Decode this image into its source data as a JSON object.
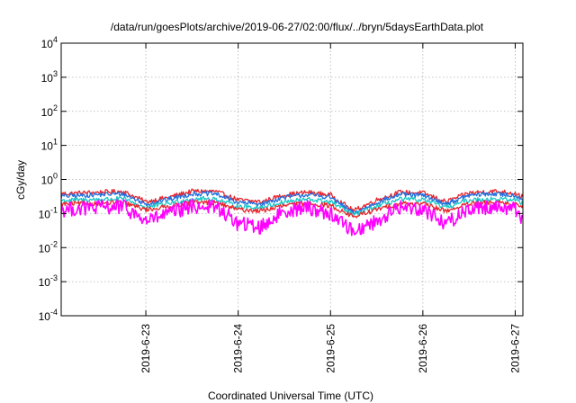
{
  "chart_data": {
    "type": "line",
    "title": "/data/run/goesPlots/archive/2019-06-27/02:00/flux/../bryn/5daysEarthData.plot",
    "xlabel": "Coordinated Universal Time (UTC)",
    "ylabel": "cGy/day",
    "yscale": "log",
    "ylim": [
      0.0001,
      10000
    ],
    "xlim": [
      "2019-06-22T02:00",
      "2019-06-27T02:00"
    ],
    "y_ticks": [
      {
        "value": 0.0001,
        "base": "10",
        "exp": "-4"
      },
      {
        "value": 0.001,
        "base": "10",
        "exp": "-3"
      },
      {
        "value": 0.01,
        "base": "10",
        "exp": "-2"
      },
      {
        "value": 0.1,
        "base": "10",
        "exp": "-1"
      },
      {
        "value": 1,
        "base": "10",
        "exp": "0"
      },
      {
        "value": 10,
        "base": "10",
        "exp": "1"
      },
      {
        "value": 100,
        "base": "10",
        "exp": "2"
      },
      {
        "value": 1000,
        "base": "10",
        "exp": "3"
      },
      {
        "value": 10000,
        "base": "10",
        "exp": "4"
      }
    ],
    "x_ticks": [
      "2019-6-23",
      "2019-6-24",
      "2019-6-25",
      "2019-6-26",
      "2019-6-27"
    ],
    "x_tick_dates": [
      "2019-06-23T00:00",
      "2019-06-24T00:00",
      "2019-06-25T00:00",
      "2019-06-26T00:00",
      "2019-06-27T00:00"
    ],
    "grid": true,
    "legend": "none",
    "series": [
      {
        "color": "#e8232a",
        "x": [
          "2019-06-22T02:00",
          "2019-06-22T12:00",
          "2019-06-22T18:00",
          "2019-06-23T00:00",
          "2019-06-23T06:00",
          "2019-06-23T12:00",
          "2019-06-23T18:00",
          "2019-06-24T00:00",
          "2019-06-24T06:00",
          "2019-06-24T12:00",
          "2019-06-24T18:00",
          "2019-06-25T00:00",
          "2019-06-25T06:00",
          "2019-06-25T12:00",
          "2019-06-25T18:00",
          "2019-06-26T00:00",
          "2019-06-26T06:00",
          "2019-06-26T12:00",
          "2019-06-26T18:00",
          "2019-06-27T00:00",
          "2019-06-27T02:00"
        ],
        "values": [
          0.38,
          0.42,
          0.45,
          0.22,
          0.3,
          0.45,
          0.45,
          0.25,
          0.22,
          0.35,
          0.42,
          0.35,
          0.12,
          0.25,
          0.42,
          0.4,
          0.22,
          0.4,
          0.45,
          0.4,
          0.3
        ]
      },
      {
        "color": "#1f6fe0",
        "x": [
          "2019-06-22T02:00",
          "2019-06-22T12:00",
          "2019-06-22T18:00",
          "2019-06-23T00:00",
          "2019-06-23T06:00",
          "2019-06-23T12:00",
          "2019-06-23T18:00",
          "2019-06-24T00:00",
          "2019-06-24T06:00",
          "2019-06-24T12:00",
          "2019-06-24T18:00",
          "2019-06-25T00:00",
          "2019-06-25T06:00",
          "2019-06-25T12:00",
          "2019-06-25T18:00",
          "2019-06-26T00:00",
          "2019-06-26T06:00",
          "2019-06-26T12:00",
          "2019-06-26T18:00",
          "2019-06-27T00:00",
          "2019-06-27T02:00"
        ],
        "values": [
          0.32,
          0.36,
          0.38,
          0.19,
          0.26,
          0.38,
          0.38,
          0.21,
          0.19,
          0.3,
          0.36,
          0.3,
          0.1,
          0.21,
          0.36,
          0.34,
          0.19,
          0.34,
          0.38,
          0.34,
          0.26
        ]
      },
      {
        "color": "#18c6c6",
        "x": [
          "2019-06-22T02:00",
          "2019-06-22T12:00",
          "2019-06-22T18:00",
          "2019-06-23T00:00",
          "2019-06-23T06:00",
          "2019-06-23T12:00",
          "2019-06-23T18:00",
          "2019-06-24T00:00",
          "2019-06-24T06:00",
          "2019-06-24T12:00",
          "2019-06-24T18:00",
          "2019-06-25T00:00",
          "2019-06-25T06:00",
          "2019-06-25T12:00",
          "2019-06-25T18:00",
          "2019-06-26T00:00",
          "2019-06-26T06:00",
          "2019-06-26T12:00",
          "2019-06-26T18:00",
          "2019-06-27T00:00",
          "2019-06-27T02:00"
        ],
        "values": [
          0.24,
          0.26,
          0.27,
          0.15,
          0.2,
          0.27,
          0.27,
          0.16,
          0.15,
          0.22,
          0.26,
          0.22,
          0.09,
          0.16,
          0.26,
          0.25,
          0.15,
          0.25,
          0.27,
          0.25,
          0.2
        ]
      },
      {
        "color": "#e8232a",
        "x": [
          "2019-06-22T02:00",
          "2019-06-22T12:00",
          "2019-06-22T18:00",
          "2019-06-23T00:00",
          "2019-06-23T06:00",
          "2019-06-23T12:00",
          "2019-06-23T18:00",
          "2019-06-24T00:00",
          "2019-06-24T06:00",
          "2019-06-24T12:00",
          "2019-06-24T18:00",
          "2019-06-25T00:00",
          "2019-06-25T06:00",
          "2019-06-25T12:00",
          "2019-06-25T18:00",
          "2019-06-26T00:00",
          "2019-06-26T06:00",
          "2019-06-26T12:00",
          "2019-06-26T18:00",
          "2019-06-27T00:00",
          "2019-06-27T02:00"
        ],
        "values": [
          0.19,
          0.2,
          0.21,
          0.13,
          0.16,
          0.21,
          0.21,
          0.13,
          0.12,
          0.17,
          0.2,
          0.17,
          0.08,
          0.13,
          0.2,
          0.19,
          0.12,
          0.19,
          0.21,
          0.19,
          0.16
        ]
      },
      {
        "color": "#ff00ff",
        "x": [
          "2019-06-22T02:00",
          "2019-06-22T12:00",
          "2019-06-22T18:00",
          "2019-06-23T00:00",
          "2019-06-23T06:00",
          "2019-06-23T12:00",
          "2019-06-23T18:00",
          "2019-06-24T00:00",
          "2019-06-24T06:00",
          "2019-06-24T12:00",
          "2019-06-24T18:00",
          "2019-06-25T00:00",
          "2019-06-25T06:00",
          "2019-06-25T12:00",
          "2019-06-25T18:00",
          "2019-06-26T00:00",
          "2019-06-26T06:00",
          "2019-06-26T12:00",
          "2019-06-26T18:00",
          "2019-06-27T00:00",
          "2019-06-27T02:00"
        ],
        "values": [
          0.13,
          0.15,
          0.16,
          0.06,
          0.1,
          0.16,
          0.16,
          0.05,
          0.04,
          0.12,
          0.15,
          0.1,
          0.03,
          0.06,
          0.15,
          0.14,
          0.05,
          0.14,
          0.16,
          0.14,
          0.07
        ]
      }
    ]
  }
}
